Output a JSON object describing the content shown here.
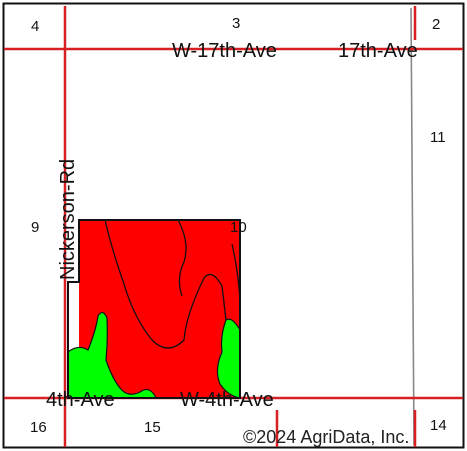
{
  "roads": [
    {
      "id": "w17th",
      "label": "W 17th Ave",
      "display": "W-17th-Ave"
    },
    {
      "id": "17th",
      "label": "17th Ave",
      "display": "17th-Ave"
    },
    {
      "id": "nickerson",
      "label": "Nickerson Rd",
      "display": "Nickerson-Rd"
    },
    {
      "id": "4th",
      "label": "4th Ave",
      "display": "4th-Ave"
    },
    {
      "id": "w4th",
      "label": "W 4th Ave",
      "display": "W-4th-Ave"
    }
  ],
  "sections": {
    "s2": "2",
    "s3": "3",
    "s4": "4",
    "s9": "9",
    "s10": "10",
    "s11": "11",
    "s14": "14",
    "s15": "15",
    "s16": "16"
  },
  "copyright": "©2024 AgriData, Inc.",
  "colors": {
    "road": "#d62024",
    "field_red": "#ff0000",
    "field_green": "#00ff00",
    "boundary": "#111111",
    "railroad": "#888888",
    "frame": "#111111"
  }
}
